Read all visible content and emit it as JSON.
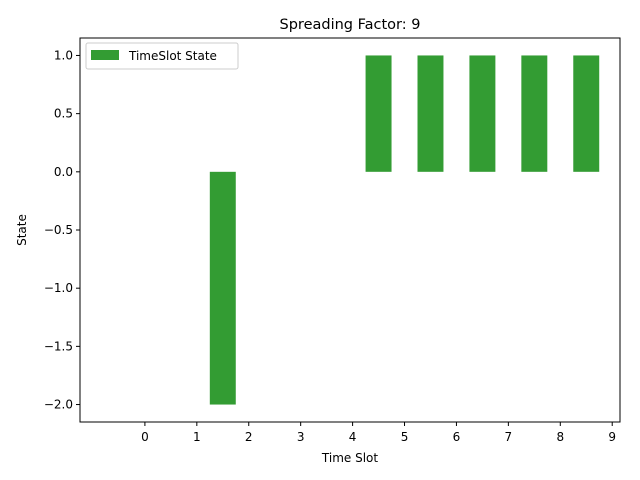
{
  "chart_data": {
    "type": "bar",
    "title": "Spreading Factor: 9",
    "xlabel": "Time Slot",
    "ylabel": "State",
    "x_ticks": [
      "0",
      "1",
      "2",
      "3",
      "4",
      "5",
      "6",
      "7",
      "8",
      "9"
    ],
    "y_ticks": [
      "1.0",
      "0.5",
      "0.0",
      "−0.5",
      "−1.0",
      "−1.5",
      "−2.0"
    ],
    "y_tick_values": [
      1.0,
      0.5,
      0.0,
      -0.5,
      -1.0,
      -1.5,
      -2.0
    ],
    "xlim": [
      -1.25,
      9.15
    ],
    "ylim": [
      -2.15,
      1.15
    ],
    "grid": false,
    "legend_position": "top-left",
    "series": [
      {
        "name": "TimeSlot State",
        "color": "#339c33",
        "x": [
          -0.5,
          0.5,
          1.5,
          2.5,
          3.5,
          4.5,
          5.5,
          6.5,
          7.5,
          8.5
        ],
        "values": [
          0,
          0,
          -2,
          0,
          0,
          1,
          1,
          1,
          1,
          1
        ]
      }
    ]
  }
}
